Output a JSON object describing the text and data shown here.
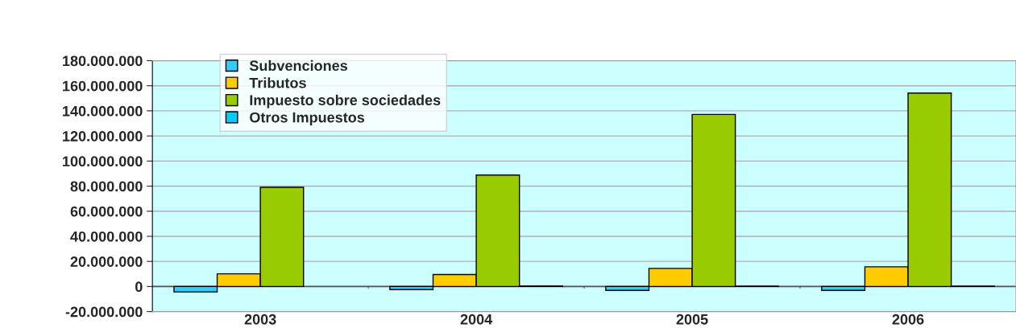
{
  "chart_data": {
    "type": "bar",
    "categories": [
      "2003",
      "2004",
      "2005",
      "2006"
    ],
    "series": [
      {
        "name": "Subvenciones",
        "color": "#33ccff",
        "values": [
          -4300000,
          -2500000,
          -3100000,
          -3100000
        ]
      },
      {
        "name": "Tributos",
        "color": "#ffcc00",
        "values": [
          10100000,
          9500000,
          14400000,
          15700000
        ]
      },
      {
        "name": "Impuesto sobre sociedades",
        "color": "#99cc00",
        "values": [
          79100000,
          88800000,
          137100000,
          154200000
        ]
      },
      {
        "name": "Otros Impuestos",
        "color": "#00ccff",
        "values": [
          null,
          400000,
          300000,
          300000
        ]
      }
    ],
    "ylim": [
      -20000000,
      180000000
    ],
    "yticks": [
      {
        "value": -20000000,
        "label": "-20.000.000"
      },
      {
        "value": 0,
        "label": "0"
      },
      {
        "value": 20000000,
        "label": "20.000.000"
      },
      {
        "value": 40000000,
        "label": "40.000.000"
      },
      {
        "value": 60000000,
        "label": "60.000.000"
      },
      {
        "value": 80000000,
        "label": "80.000.000"
      },
      {
        "value": 100000000,
        "label": "100.000.000"
      },
      {
        "value": 120000000,
        "label": "120.000.000"
      },
      {
        "value": 140000000,
        "label": "140.000.000"
      },
      {
        "value": 160000000,
        "label": "160.000.000"
      },
      {
        "value": 180000000,
        "label": "180.000.000"
      }
    ],
    "grid": "y",
    "legend": "top left"
  }
}
